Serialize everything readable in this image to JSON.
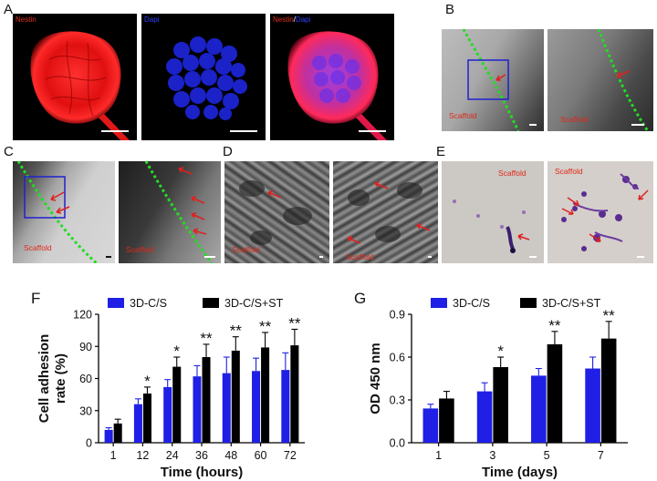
{
  "panels": {
    "A": {
      "letter": "A",
      "labels": {
        "img1": "Nestin",
        "img2": "Dapi",
        "img3_part1": "Nestin",
        "img3_sep": "/",
        "img3_part2": "Dapi"
      }
    },
    "B": {
      "letter": "B",
      "scaffold": "Scaffold"
    },
    "C": {
      "letter": "C",
      "scaffold": "Scaffold"
    },
    "D": {
      "letter": "D",
      "scaffold": "Scaffold"
    },
    "E": {
      "letter": "E",
      "scaffold": "Scaffold"
    },
    "F": {
      "letter": "F"
    },
    "G": {
      "letter": "G"
    }
  },
  "chart_data": [
    {
      "panel": "F",
      "type": "bar",
      "xlabel": "Time (hours)",
      "ylabel": "Cell adhesion rate (%)",
      "ylabel_lines": [
        "Cell adhesion",
        "rate (%)"
      ],
      "categories": [
        "1",
        "12",
        "24",
        "36",
        "48",
        "60",
        "72"
      ],
      "ylim": [
        0,
        120
      ],
      "yticks": [
        "0",
        "30",
        "60",
        "90",
        "120"
      ],
      "legend_position": "top",
      "series": [
        {
          "name": "3D-C/S",
          "color": "#1f1fe6",
          "values": [
            12,
            36,
            52,
            62,
            65,
            67,
            68
          ],
          "errors": [
            2,
            5,
            7,
            10,
            15,
            12,
            16
          ]
        },
        {
          "name": "3D-C/S+ST",
          "color": "#000000",
          "values": [
            18,
            46,
            71,
            80,
            86,
            89,
            91
          ],
          "errors": [
            4,
            6,
            9,
            12,
            13,
            14,
            15
          ]
        }
      ],
      "significance": [
        "",
        "*",
        "*",
        "**",
        "**",
        "**",
        "**"
      ]
    },
    {
      "panel": "G",
      "type": "bar",
      "xlabel": "Time (days)",
      "ylabel": "OD 450 nm",
      "categories": [
        "1",
        "3",
        "5",
        "7"
      ],
      "ylim": [
        0,
        0.9
      ],
      "yticks": [
        "0.0",
        "0.3",
        "0.6",
        "0.9"
      ],
      "legend_position": "top",
      "series": [
        {
          "name": "3D-C/S",
          "color": "#1f1fe6",
          "values": [
            0.24,
            0.36,
            0.47,
            0.52
          ],
          "errors": [
            0.03,
            0.06,
            0.05,
            0.08
          ]
        },
        {
          "name": "3D-C/S+ST",
          "color": "#000000",
          "values": [
            0.31,
            0.53,
            0.69,
            0.73
          ],
          "errors": [
            0.05,
            0.07,
            0.09,
            0.12
          ]
        }
      ],
      "significance": [
        "",
        "*",
        "**",
        "**"
      ]
    }
  ]
}
